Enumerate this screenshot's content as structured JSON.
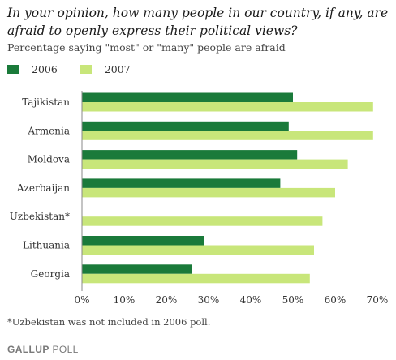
{
  "chart_data": {
    "type": "bar",
    "orientation": "horizontal",
    "title": "In your opinion, how many people in our country, if any, are afraid to openly express their political views?",
    "subtitle": "Percentage saying \"most\" or \"many\" people are afraid",
    "categories": [
      "Tajikistan",
      "Armenia",
      "Moldova",
      "Azerbaijan",
      "Uzbekistan*",
      "Lithuania",
      "Georgia"
    ],
    "series": [
      {
        "name": "2006",
        "color": "#1a7a3a",
        "values": [
          50,
          49,
          51,
          47,
          null,
          29,
          26
        ]
      },
      {
        "name": "2007",
        "color": "#c8e67a",
        "values": [
          69,
          69,
          63,
          60,
          57,
          55,
          54
        ]
      }
    ],
    "xlim": [
      0,
      70
    ],
    "xticks": [
      "0%",
      "10%",
      "20%",
      "30%",
      "40%",
      "50%",
      "60%",
      "70%"
    ],
    "legend_position": "top-left",
    "grid": false
  },
  "footnote": "*Uzbekistan was not included in 2006 poll.",
  "brand": {
    "part1": "GALLUP",
    "part2": "POLL"
  }
}
